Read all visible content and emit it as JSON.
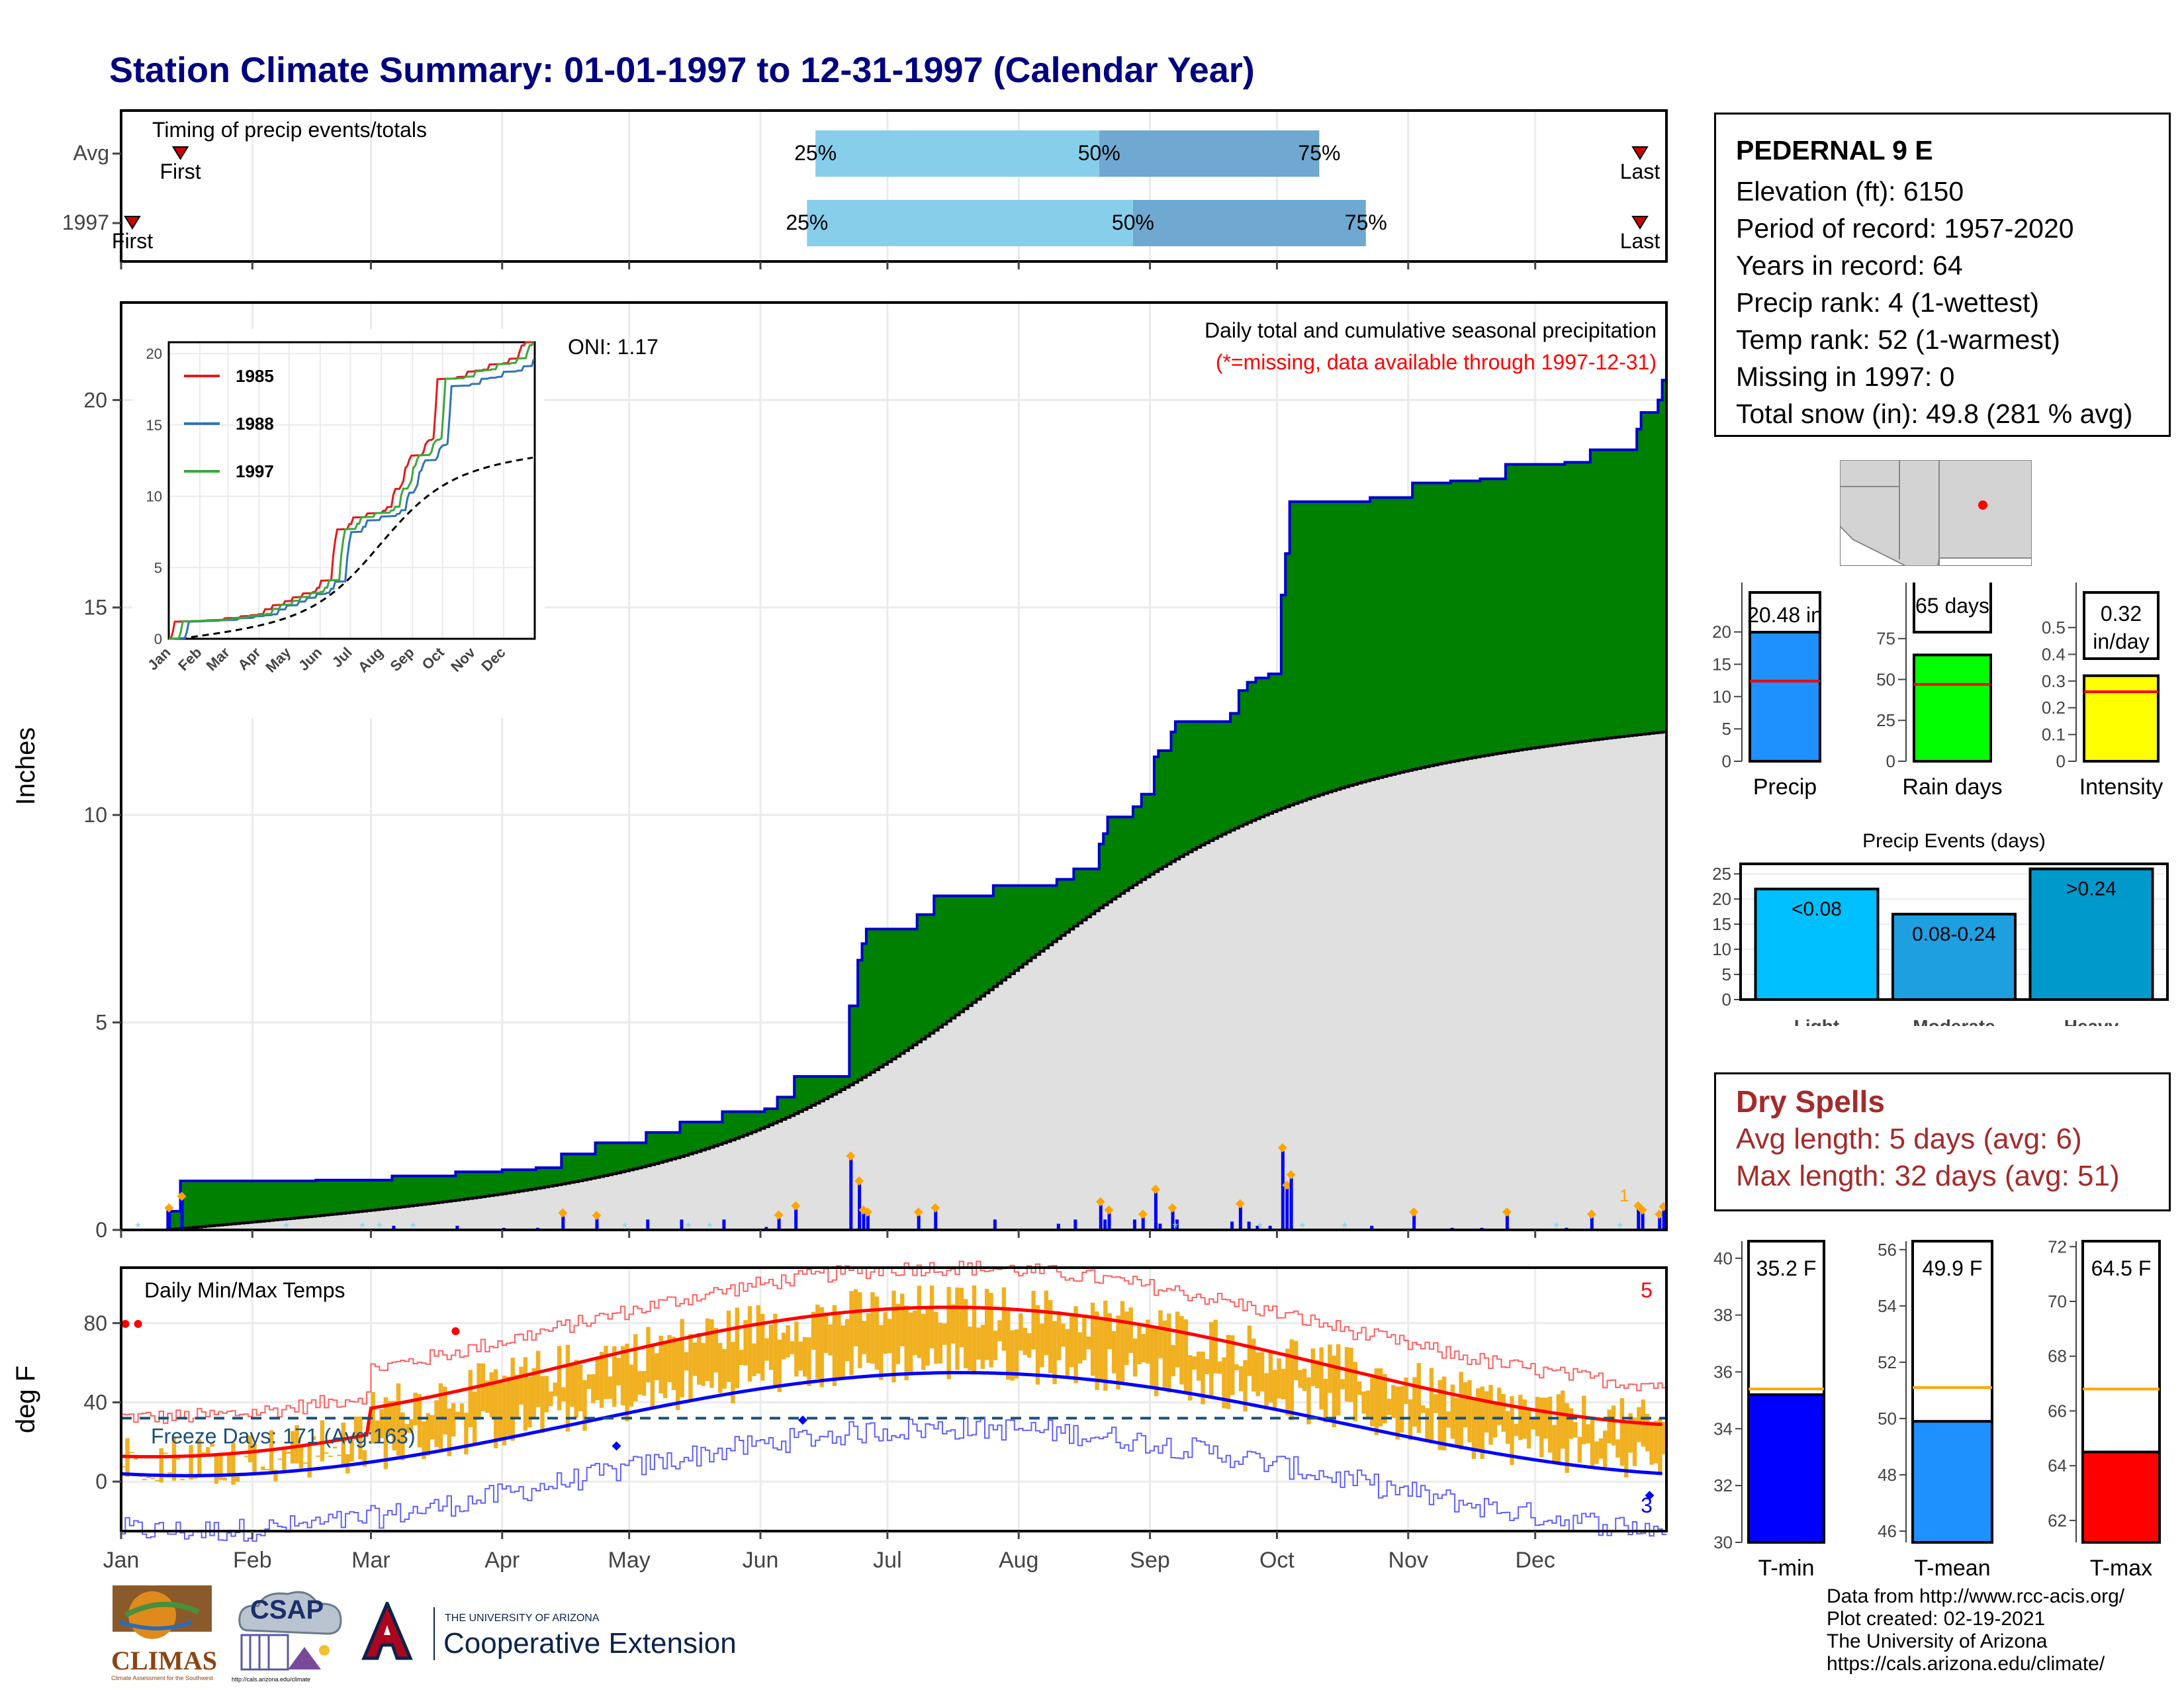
{
  "title": "Station Climate Summary: 01-01-1997 to 12-31-1997 (Calendar Year)",
  "timing_panel": {
    "label": "Timing of precip events/totals",
    "rows": [
      {
        "name": "Avg",
        "first": 15,
        "p25": 165,
        "p50": 232,
        "p75": 284,
        "last": 361,
        "first_label": "First",
        "last_label": "Last"
      },
      {
        "name": "1997",
        "first": 1,
        "p25": 163,
        "p50": 240,
        "p75": 295,
        "last": 371,
        "first_label": "First",
        "last_label": "Last"
      }
    ],
    "pct_labels": [
      "25%",
      "50%",
      "75%"
    ]
  },
  "precip_panel": {
    "ylabel": "Inches",
    "yticks": [
      0,
      5,
      10,
      15,
      20
    ],
    "note": "Daily total and cumulative seasonal precipitation",
    "missing_note": "(*=missing, data available through 1997-12-31)",
    "oni": "ONI: 1.17",
    "max_daily_marker": "1"
  },
  "inset": {
    "yticks": [
      0,
      5,
      10,
      15,
      20
    ],
    "months": [
      "Jan",
      "Feb",
      "Mar",
      "Apr",
      "May",
      "Jun",
      "Jul",
      "Aug",
      "Sep",
      "Oct",
      "Nov",
      "Dec"
    ],
    "legend": [
      {
        "name": "1985",
        "color": "#e31a1c"
      },
      {
        "name": "1988",
        "color": "#3173b5"
      },
      {
        "name": "1997",
        "color": "#3aa83a"
      }
    ]
  },
  "temp_panel": {
    "ylabel": "deg F",
    "yticks": [
      0,
      40,
      80
    ],
    "label": "Daily Min/Max Temps",
    "freeze": "Freeze Days: 171 (Avg:163)",
    "record_high_count": "5",
    "record_low_count": "3"
  },
  "months": [
    "Jan",
    "Feb",
    "Mar",
    "Apr",
    "May",
    "Jun",
    "Jul",
    "Aug",
    "Sep",
    "Oct",
    "Nov",
    "Dec"
  ],
  "station": {
    "name": "PEDERNAL 9 E",
    "lines": [
      "Elevation (ft): 6150",
      "Period of record: 1957-2020",
      "Years in record: 64",
      "Precip rank: 4 (1-wettest)",
      "Temp rank: 52 (1-warmest)",
      "Missing in 1997: 0",
      "Total snow (in): 49.8 (281 % avg)"
    ]
  },
  "summary_bars": [
    {
      "name": "Precip",
      "value": 20.48,
      "label": "20.48 in",
      "avg": 12.4,
      "ymax": 21.5,
      "ticks": [
        0,
        5,
        10,
        15,
        20
      ],
      "color": "#1e90ff"
    },
    {
      "name": "Rain days",
      "value": 65,
      "label": "65 days",
      "avg": 47,
      "ymax": 85,
      "ticks": [
        0,
        25,
        50,
        75
      ],
      "color": "#00ff00"
    },
    {
      "name": "Intensity",
      "value": 0.32,
      "label": "0.32 in/day",
      "avg": 0.26,
      "ymax": 0.52,
      "ticks": [
        0.0,
        0.1,
        0.2,
        0.3,
        0.4,
        0.5
      ],
      "color": "#ffff00"
    }
  ],
  "events": {
    "title": "Precip Events (days)",
    "ticks": [
      0,
      5,
      10,
      15,
      20,
      25
    ],
    "bars": [
      {
        "name": "Light",
        "label": "<0.08",
        "value": 22,
        "color": "#00bfff"
      },
      {
        "name": "Moderate",
        "label": "0.08-0.24",
        "value": 17,
        "color": "#1e9fe0"
      },
      {
        "name": "Heavy",
        "label": ">0.24",
        "value": 26,
        "color": "#0099cc"
      }
    ]
  },
  "dry_spells": {
    "title": "Dry Spells",
    "avg": "Avg length: 5 days (avg: 6)",
    "max": "Max length: 32 days (avg: 51)"
  },
  "temp_bars": [
    {
      "name": "T-min",
      "value": 35.2,
      "label": "35.2 F",
      "avg": 35.4,
      "ymin": 30,
      "ymax": 40.6,
      "ticks": [
        30,
        32,
        34,
        36,
        38,
        40
      ],
      "color": "#0000ff"
    },
    {
      "name": "T-mean",
      "value": 49.9,
      "label": "49.9 F",
      "avg": 51.1,
      "ymin": 45.6,
      "ymax": 56.3,
      "ticks": [
        46,
        48,
        50,
        52,
        54,
        56
      ],
      "color": "#1e90ff"
    },
    {
      "name": "T-max",
      "value": 64.5,
      "label": "64.5 F",
      "avg": 66.8,
      "ymin": 61.2,
      "ymax": 72.2,
      "ticks": [
        62,
        64,
        66,
        68,
        70,
        72
      ],
      "color": "#ff0000"
    }
  ],
  "logos": {
    "climas": "CLIMAS",
    "climas_sub": "Climate Assessment for the Southwest",
    "csap": "CSAP",
    "csap_url": "http://cals.arizona.edu/climate",
    "ua_small": "THE UNIVERSITY OF ARIZONA",
    "ua_big": "Cooperative Extension"
  },
  "credits": [
    "Data from http://www.rcc-acis.org/",
    "Plot created: 02-19-2021",
    "The University of Arizona",
    "https://cals.arizona.edu/climate/"
  ],
  "colors": {
    "title": "#000080",
    "cumulative_fill": "#008000",
    "cumulative_line": "#0000cd",
    "avg_fill": "#e0e0e0",
    "quartile_light": "#87ceeb",
    "quartile_dark": "#6fa8d0",
    "temp_bar": "#f0b020",
    "dry_spell": "#a52a2a"
  }
}
